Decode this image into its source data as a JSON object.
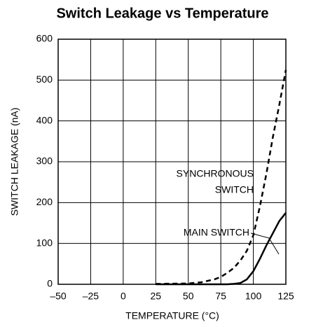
{
  "chart_data": {
    "type": "line",
    "title": "Switch Leakage vs Temperature",
    "x_label": "TEMPERATURE (°C)",
    "y_label": "SWITCH LEAKAGE (nA)",
    "x": [
      25,
      50,
      60,
      70,
      75,
      80,
      85,
      90,
      95,
      100,
      105,
      110,
      115,
      120,
      125
    ],
    "series": [
      {
        "name": "SYNCHRONOUS SWITCH",
        "color": "#000000",
        "dashed": true,
        "values": [
          1,
          2,
          5,
          12,
          18,
          28,
          40,
          58,
          82,
          120,
          190,
          270,
          360,
          440,
          525
        ]
      },
      {
        "name": "MAIN SWITCH",
        "color": "#000000",
        "dashed": false,
        "values": [
          0,
          0,
          0,
          0,
          0,
          0,
          1,
          3,
          12,
          32,
          62,
          95,
          125,
          155,
          175
        ]
      }
    ],
    "annotations": [
      [
        "SYNCHRONOUS",
        "SWITCH"
      ],
      [
        "MAIN SWITCH"
      ]
    ],
    "xlim": [
      -50,
      125
    ],
    "xticks": [
      {
        "value": -50,
        "label": "–50"
      },
      {
        "value": -25,
        "label": "–25"
      },
      0,
      25,
      50,
      75,
      100,
      125
    ],
    "ylim": [
      0,
      600
    ],
    "yticks": [
      0,
      100,
      200,
      300,
      400,
      500,
      600
    ],
    "grid": true
  }
}
